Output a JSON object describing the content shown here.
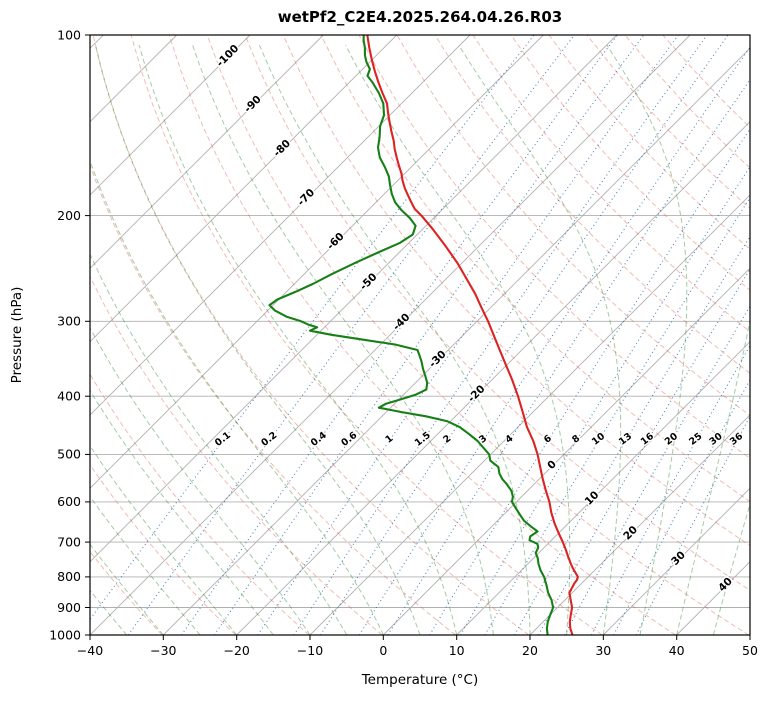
{
  "title": "wetPf2_C2E4.2025.264.04.26.R03",
  "axes": {
    "x": {
      "label": "Temperature (°C)",
      "min": -40,
      "max": 50,
      "ticks": [
        -40,
        -30,
        -20,
        -10,
        0,
        10,
        20,
        30,
        40,
        50
      ]
    },
    "y": {
      "label": "Pressure (hPa)",
      "scale": "log",
      "min": 100,
      "max": 1000,
      "ticks": [
        100,
        200,
        300,
        400,
        500,
        600,
        700,
        800,
        900,
        1000
      ]
    }
  },
  "chart_data": {
    "type": "line",
    "variant": "skew-t-log-p",
    "skew_degrees": 45,
    "grid": "on",
    "series": [
      {
        "name": "temperature",
        "color": "#dd2222",
        "units": "hPa,degC",
        "points": [
          [
            1000,
            25.8
          ],
          [
            975,
            24.6
          ],
          [
            950,
            23.6
          ],
          [
            925,
            22.8
          ],
          [
            900,
            22.0
          ],
          [
            875,
            20.8
          ],
          [
            850,
            19.6
          ],
          [
            835,
            19.3
          ],
          [
            820,
            19.0
          ],
          [
            810,
            18.9
          ],
          [
            800,
            18.6
          ],
          [
            790,
            17.9
          ],
          [
            775,
            16.8
          ],
          [
            760,
            15.8
          ],
          [
            740,
            14.5
          ],
          [
            720,
            13.2
          ],
          [
            700,
            11.8
          ],
          [
            675,
            9.9
          ],
          [
            650,
            8.0
          ],
          [
            625,
            6.2
          ],
          [
            600,
            4.5
          ],
          [
            575,
            2.5
          ],
          [
            550,
            0.5
          ],
          [
            525,
            -1.5
          ],
          [
            500,
            -3.6
          ],
          [
            475,
            -6.0
          ],
          [
            450,
            -8.8
          ],
          [
            425,
            -11.4
          ],
          [
            400,
            -14.2
          ],
          [
            375,
            -17.3
          ],
          [
            350,
            -20.8
          ],
          [
            325,
            -24.5
          ],
          [
            300,
            -28.5
          ],
          [
            285,
            -31.2
          ],
          [
            270,
            -34.0
          ],
          [
            255,
            -37.2
          ],
          [
            240,
            -40.6
          ],
          [
            225,
            -44.5
          ],
          [
            210,
            -48.8
          ],
          [
            200,
            -52.0
          ],
          [
            195,
            -53.8
          ],
          [
            190,
            -55.2
          ],
          [
            185,
            -56.6
          ],
          [
            180,
            -58.0
          ],
          [
            175,
            -59.3
          ],
          [
            170,
            -60.5
          ],
          [
            165,
            -61.9
          ],
          [
            160,
            -63.3
          ],
          [
            155,
            -64.7
          ],
          [
            150,
            -66.0
          ],
          [
            145,
            -67.5
          ],
          [
            140,
            -69.0
          ],
          [
            135,
            -70.5
          ],
          [
            130,
            -72.0
          ],
          [
            125,
            -74.0
          ],
          [
            120,
            -76.0
          ],
          [
            115,
            -78.0
          ],
          [
            110,
            -80.0
          ],
          [
            105,
            -82.0
          ],
          [
            100,
            -84.0
          ]
        ]
      },
      {
        "name": "dewpoint",
        "color": "#168016",
        "units": "hPa,degC",
        "points": [
          [
            1000,
            22.4
          ],
          [
            975,
            21.4
          ],
          [
            950,
            20.6
          ],
          [
            925,
            20.0
          ],
          [
            900,
            19.4
          ],
          [
            875,
            18.2
          ],
          [
            850,
            16.7
          ],
          [
            825,
            15.4
          ],
          [
            800,
            14.0
          ],
          [
            780,
            12.6
          ],
          [
            760,
            11.4
          ],
          [
            745,
            10.6
          ],
          [
            730,
            9.6
          ],
          [
            715,
            9.2
          ],
          [
            705,
            8.6
          ],
          [
            695,
            7.0
          ],
          [
            685,
            6.6
          ],
          [
            672,
            6.9
          ],
          [
            660,
            5.4
          ],
          [
            645,
            3.6
          ],
          [
            630,
            2.2
          ],
          [
            615,
            0.8
          ],
          [
            600,
            -0.6
          ],
          [
            588,
            -1.2
          ],
          [
            575,
            -2.2
          ],
          [
            560,
            -3.8
          ],
          [
            550,
            -5.0
          ],
          [
            538,
            -6.2
          ],
          [
            525,
            -7.2
          ],
          [
            512,
            -9.2
          ],
          [
            500,
            -10.2
          ],
          [
            488,
            -11.8
          ],
          [
            475,
            -13.6
          ],
          [
            462,
            -15.8
          ],
          [
            450,
            -18.0
          ],
          [
            440,
            -20.5
          ],
          [
            432,
            -24.0
          ],
          [
            425,
            -28.0
          ],
          [
            418,
            -31.6
          ],
          [
            412,
            -31.2
          ],
          [
            405,
            -29.8
          ],
          [
            398,
            -28.4
          ],
          [
            390,
            -27.6
          ],
          [
            380,
            -28.4
          ],
          [
            370,
            -29.6
          ],
          [
            360,
            -30.9
          ],
          [
            350,
            -32.1
          ],
          [
            342,
            -33.2
          ],
          [
            335,
            -34.2
          ],
          [
            328,
            -38.0
          ],
          [
            322,
            -43.0
          ],
          [
            316,
            -48.0
          ],
          [
            311,
            -51.5
          ],
          [
            307,
            -51.0
          ],
          [
            304,
            -52.5
          ],
          [
            300,
            -54.0
          ],
          [
            295,
            -56.5
          ],
          [
            288,
            -59.0
          ],
          [
            282,
            -60.5
          ],
          [
            276,
            -60.2
          ],
          [
            268,
            -58.8
          ],
          [
            260,
            -57.5
          ],
          [
            250,
            -56.2
          ],
          [
            240,
            -54.6
          ],
          [
            230,
            -52.8
          ],
          [
            222,
            -51.2
          ],
          [
            215,
            -50.6
          ],
          [
            208,
            -51.4
          ],
          [
            202,
            -53.2
          ],
          [
            196,
            -55.4
          ],
          [
            190,
            -57.4
          ],
          [
            184,
            -59.0
          ],
          [
            178,
            -60.4
          ],
          [
            172,
            -61.8
          ],
          [
            166,
            -63.6
          ],
          [
            160,
            -65.6
          ],
          [
            154,
            -67.2
          ],
          [
            148,
            -68.4
          ],
          [
            142,
            -69.8
          ],
          [
            136,
            -70.8
          ],
          [
            130,
            -72.5
          ],
          [
            125,
            -74.5
          ],
          [
            120,
            -76.8
          ],
          [
            117,
            -78.4
          ],
          [
            114,
            -79.0
          ],
          [
            111,
            -80.4
          ],
          [
            108,
            -81.6
          ],
          [
            105,
            -82.6
          ],
          [
            102,
            -83.8
          ],
          [
            100,
            -84.5
          ]
        ]
      }
    ],
    "background": {
      "grid_color": "#b0b0b0",
      "isotherms": {
        "from": -130,
        "to": 50,
        "step": 10,
        "color": "#b0b0b0",
        "label_colors": {
          "negative": "#1f77b4",
          "zero": "#7f7f7f",
          "positive": "#d62728"
        },
        "labels": [
          {
            "t": -100,
            "p": 108,
            "label": "-100"
          },
          {
            "t": -90,
            "p": 130,
            "label": "-90"
          },
          {
            "t": -80,
            "p": 154,
            "label": "-80"
          },
          {
            "t": -70,
            "p": 186,
            "label": "-70"
          },
          {
            "t": -60,
            "p": 220,
            "label": "-60"
          },
          {
            "t": -50,
            "p": 257,
            "label": "-50"
          },
          {
            "t": -40,
            "p": 300,
            "label": "-40"
          },
          {
            "t": -30,
            "p": 346,
            "label": "-30"
          },
          {
            "t": -20,
            "p": 395,
            "label": "-20"
          },
          {
            "t": 0,
            "p": 519,
            "label": "0"
          },
          {
            "t": 10,
            "p": 590,
            "label": "10"
          },
          {
            "t": 20,
            "p": 674,
            "label": "20"
          },
          {
            "t": 30,
            "p": 743,
            "label": "30"
          },
          {
            "t": 40,
            "p": 822,
            "label": "40"
          }
        ]
      },
      "dry_adiabats": {
        "theta_k_from": 243,
        "theta_k_to": 443,
        "step": 10,
        "color": "rgba(221,85,64,0.4)"
      },
      "moist_adiabats": {
        "t0_c_from": -40,
        "t0_c_to": 45,
        "step": 5,
        "color": "rgba(55,140,55,0.45)"
      },
      "mixing_ratio_g_kg": {
        "values": [
          0.1,
          0.2,
          0.4,
          0.6,
          1,
          1.5,
          2,
          3,
          4,
          6,
          8,
          10,
          13,
          16,
          20,
          25,
          30,
          36
        ],
        "labels": [
          "0.1",
          "0.2",
          "0.4",
          "0.6",
          "1",
          "1.5",
          "2",
          "3",
          "4",
          "6",
          "8",
          "10",
          "13",
          "16",
          "20",
          "25",
          "30",
          "36"
        ],
        "label_pressure_hpa": 470,
        "color": "rgba(40,105,170,0.8)",
        "label_color": "#1f77b4"
      }
    }
  }
}
